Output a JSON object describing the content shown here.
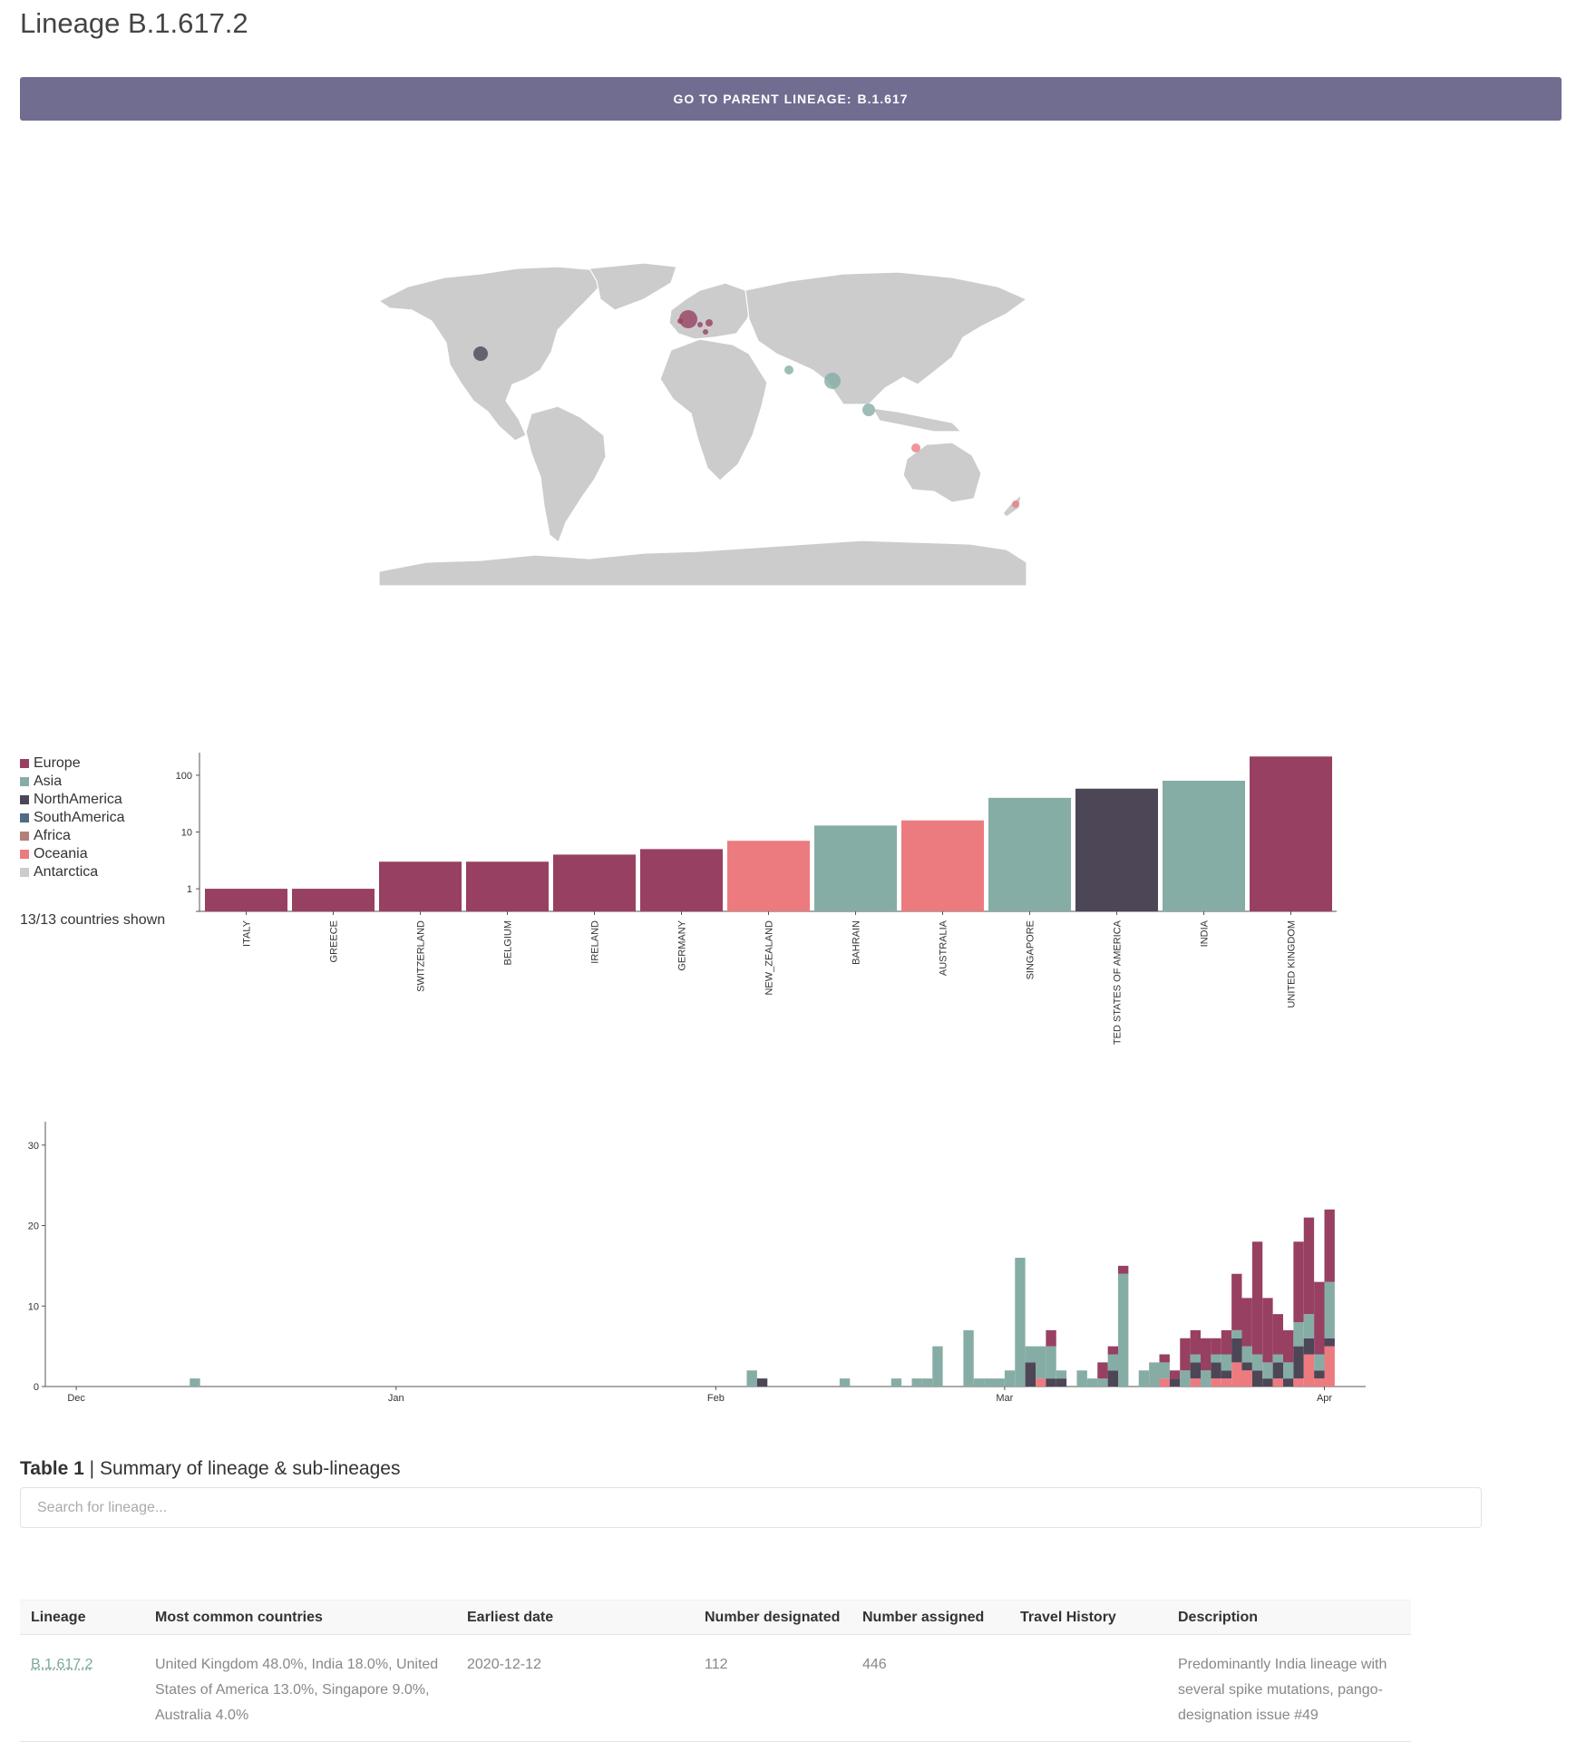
{
  "page": {
    "title": "Lineage B.1.617.2",
    "parent_button": {
      "prefix": "GO TO PARENT LINEAGE:",
      "lineage": "B.1.617"
    }
  },
  "colors": {
    "Europe": "#974062",
    "Asia": "#86ada5",
    "NorthAmerica": "#4d4656",
    "SouthAmerica": "#4f6c80",
    "Africa": "#b37f7a",
    "Oceania": "#ec7b80",
    "Antarctica": "#cccccc",
    "map_land": "#cccccc",
    "axis": "#555555"
  },
  "map": {
    "points": [
      {
        "country": "United Kingdom",
        "region": "Europe"
      },
      {
        "country": "Belgium",
        "region": "Europe"
      },
      {
        "country": "Germany",
        "region": "Europe"
      },
      {
        "country": "Ireland",
        "region": "Europe"
      },
      {
        "country": "Switzerland",
        "region": "Europe"
      },
      {
        "country": "United States of America",
        "region": "NorthAmerica"
      },
      {
        "country": "India",
        "region": "Asia"
      },
      {
        "country": "Bahrain",
        "region": "Asia"
      },
      {
        "country": "Singapore",
        "region": "Asia"
      },
      {
        "country": "Australia",
        "region": "Oceania"
      },
      {
        "country": "New Zealand",
        "region": "Oceania"
      }
    ]
  },
  "legend": {
    "items": [
      {
        "label": "Europe",
        "color": "#974062"
      },
      {
        "label": "Asia",
        "color": "#86ada5"
      },
      {
        "label": "NorthAmerica",
        "color": "#4d4656"
      },
      {
        "label": "SouthAmerica",
        "color": "#4f6c80"
      },
      {
        "label": "Africa",
        "color": "#b37f7a"
      },
      {
        "label": "Oceania",
        "color": "#ec7b80"
      },
      {
        "label": "Antarctica",
        "color": "#cccccc"
      }
    ],
    "shown_count": "13/13 countries shown"
  },
  "chart_data": [
    {
      "type": "bar",
      "yscale": "log",
      "ylim": [
        0.4,
        250
      ],
      "ytick_values": [
        1,
        10,
        100
      ],
      "ytick_labels": [
        "1",
        "10",
        "100"
      ],
      "categories": [
        "ITALY",
        "GREECE",
        "SWITZERLAND",
        "BELGIUM",
        "IRELAND",
        "GERMANY",
        "NEW_ZEALAND",
        "BAHRAIN",
        "AUSTRALIA",
        "SINGAPORE",
        "TED STATES OF AMERICA",
        "INDIA",
        "UNITED KINGDOM"
      ],
      "values": [
        1,
        1,
        3,
        3,
        4,
        5,
        7,
        13,
        16,
        40,
        58,
        80,
        214
      ],
      "regions": [
        "Europe",
        "Europe",
        "Europe",
        "Europe",
        "Europe",
        "Europe",
        "Oceania",
        "Asia",
        "Oceania",
        "Asia",
        "NorthAmerica",
        "Asia",
        "Europe"
      ]
    },
    {
      "type": "bar",
      "stacked": true,
      "x_range": [
        "2020-11-28",
        "2021-04-05"
      ],
      "ylim": [
        0,
        32
      ],
      "ytick_values": [
        0,
        10,
        20,
        30
      ],
      "xtick_dates": [
        "2020-12-01",
        "2021-01-01",
        "2021-02-01",
        "2021-03-01",
        "2021-04-01"
      ],
      "xtick_labels": [
        "Dec",
        "Jan",
        "Feb",
        "Mar",
        "Apr"
      ],
      "x": [
        "2020-12-12",
        "2021-02-04",
        "2021-02-05",
        "2021-02-13",
        "2021-02-18",
        "2021-02-20",
        "2021-02-21",
        "2021-02-22",
        "2021-02-23",
        "2021-02-25",
        "2021-02-26",
        "2021-02-27",
        "2021-02-28",
        "2021-03-01",
        "2021-03-02",
        "2021-03-03",
        "2021-03-04",
        "2021-03-05",
        "2021-03-06",
        "2021-03-08",
        "2021-03-09",
        "2021-03-10",
        "2021-03-11",
        "2021-03-12",
        "2021-03-13",
        "2021-03-14",
        "2021-03-15",
        "2021-03-16",
        "2021-03-17",
        "2021-03-18",
        "2021-03-19",
        "2021-03-20",
        "2021-03-21",
        "2021-03-22",
        "2021-03-23",
        "2021-03-24",
        "2021-03-25",
        "2021-03-26",
        "2021-03-27",
        "2021-03-28",
        "2021-03-29",
        "2021-03-30",
        "2021-03-31",
        "2021-04-01"
      ],
      "series": [
        {
          "name": "Europe",
          "color": "#974062",
          "values": [
            0,
            0,
            0,
            0,
            0,
            0,
            0,
            0,
            0,
            0,
            0,
            0,
            0,
            0,
            0,
            0,
            0,
            2,
            0,
            0,
            0,
            2,
            1,
            1,
            0,
            0,
            0,
            1,
            1,
            4,
            3,
            4,
            2,
            3,
            7,
            6,
            14,
            8,
            5,
            4,
            10,
            12,
            9,
            9
          ]
        },
        {
          "name": "Asia",
          "color": "#86ada5",
          "values": [
            1,
            2,
            0,
            1,
            1,
            1,
            1,
            5,
            0,
            7,
            1,
            1,
            1,
            2,
            16,
            2,
            4,
            4,
            1,
            2,
            1,
            1,
            2,
            14,
            0,
            2,
            3,
            2,
            0,
            2,
            1,
            2,
            1,
            2,
            1,
            2,
            2,
            2,
            1,
            2,
            3,
            3,
            2,
            7
          ]
        },
        {
          "name": "NorthAmerica",
          "color": "#4d4656",
          "values": [
            0,
            0,
            1,
            0,
            0,
            0,
            0,
            0,
            0,
            0,
            0,
            0,
            0,
            0,
            0,
            3,
            0,
            1,
            1,
            0,
            0,
            0,
            2,
            0,
            0,
            0,
            0,
            0,
            1,
            0,
            2,
            0,
            2,
            1,
            3,
            1,
            2,
            1,
            2,
            1,
            4,
            2,
            1,
            1
          ]
        },
        {
          "name": "Oceania",
          "color": "#ec7b80",
          "values": [
            0,
            0,
            0,
            0,
            0,
            0,
            0,
            0,
            0,
            0,
            0,
            0,
            0,
            0,
            0,
            0,
            1,
            0,
            0,
            0,
            0,
            0,
            0,
            0,
            0,
            0,
            0,
            1,
            0,
            0,
            1,
            0,
            1,
            1,
            3,
            2,
            0,
            0,
            1,
            0,
            1,
            4,
            1,
            5
          ]
        }
      ]
    }
  ],
  "table": {
    "caption_bold": "Table 1",
    "caption_rest": "| Summary of lineage & sub-lineages",
    "search_placeholder": "Search for lineage...",
    "headers": [
      "Lineage",
      "Most common countries",
      "Earliest date",
      "Number designated",
      "Number assigned",
      "Travel History",
      "Description"
    ],
    "rows": [
      {
        "lineage": "B.1.617.2",
        "countries": "United Kingdom 48.0%, India 18.0%, United States of America 13.0%, Singapore 9.0%, Australia 4.0%",
        "earliest": "2020-12-12",
        "designated": "112",
        "assigned": "446",
        "travel": "",
        "description": "Predominantly India lineage with several spike mutations, pango-designation issue #49"
      }
    ]
  }
}
